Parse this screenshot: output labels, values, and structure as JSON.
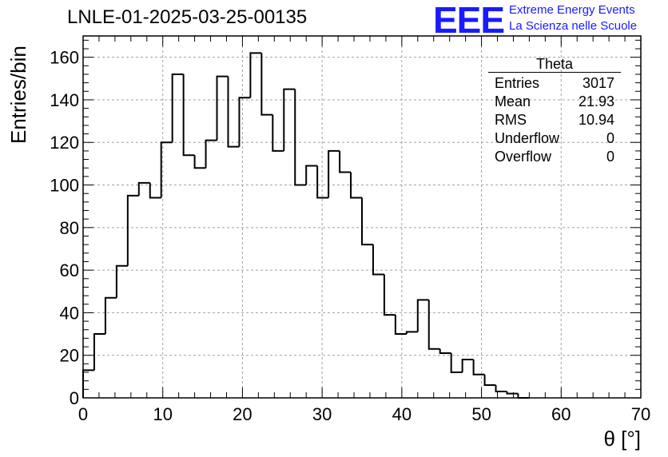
{
  "title": "LNLE-01-2025-03-25-00135",
  "logo": {
    "text": "EEE",
    "line1": "Extreme Energy Events",
    "line2": "La Scienza nelle Scuole",
    "color": "#1a1aff"
  },
  "stats_box": {
    "title": "Theta",
    "rows": [
      {
        "label": "Entries",
        "value": "3017"
      },
      {
        "label": "Mean",
        "value": "21.93"
      },
      {
        "label": "RMS",
        "value": "10.94"
      },
      {
        "label": "Underflow",
        "value": "0"
      },
      {
        "label": "Overflow",
        "value": "0"
      }
    ]
  },
  "chart_data": {
    "type": "histogram",
    "xlabel": "θ [°]",
    "ylabel": "Entries/bin",
    "xlim": [
      0,
      70
    ],
    "ylim": [
      0,
      170
    ],
    "bin_width": 1.4,
    "bin_edges_start": 0,
    "values": [
      13,
      30,
      47,
      62,
      95,
      101,
      94,
      120,
      152,
      114,
      108,
      121,
      151,
      118,
      141,
      162,
      133,
      116,
      145,
      100,
      109,
      94,
      116,
      106,
      94,
      72,
      58,
      39,
      30,
      31,
      46,
      23,
      21,
      12,
      18,
      11,
      6,
      3,
      2,
      0
    ],
    "x_ticks": [
      0,
      10,
      20,
      30,
      40,
      50,
      60,
      70
    ],
    "y_ticks": [
      0,
      20,
      40,
      60,
      80,
      100,
      120,
      140,
      160
    ],
    "grid": true,
    "line_color": "#000000",
    "grid_color": "#a0a0a0"
  }
}
